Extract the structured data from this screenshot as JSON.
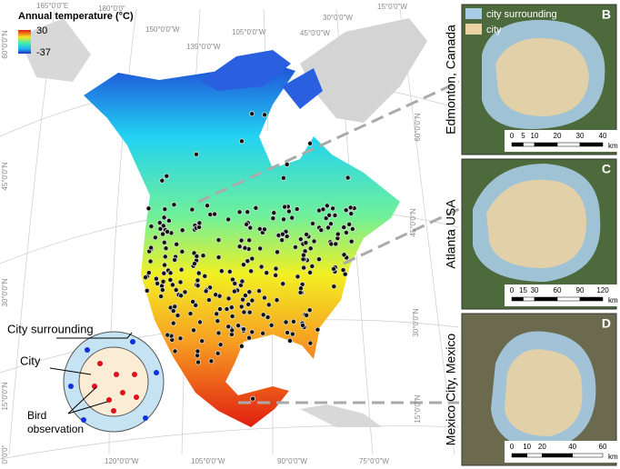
{
  "legend": {
    "title": "Annual temperature (°C)",
    "max": 30,
    "min": -37
  },
  "graticule": {
    "top": [
      "165°0'0\"E",
      "180°0'0\"",
      "150°0'0\"W",
      "135°0'0\"W",
      "105°0'0\"W",
      "45°0'0\"W",
      "30°0'0\"W",
      "15°0'0\"W"
    ],
    "left": [
      "60°0'0\"N",
      "45°0'0\"N",
      "30°0'0\"N",
      "15°0'0\"N",
      "0°0'0\""
    ],
    "bottom": [
      "120°0'0\"W",
      "105°0'0\"W",
      "90°0'0\"W",
      "75°0'0\"W"
    ],
    "right": [
      "60°0'0\"N",
      "45°0'0\"N",
      "30°0'0\"N",
      "15°0'0\"N"
    ]
  },
  "inset": {
    "surrounding": "City surrounding",
    "city": "City",
    "bird": "Bird observation"
  },
  "panel_legend": {
    "surrounding": "city surrounding",
    "city": "city"
  },
  "panels": [
    {
      "letter": "B",
      "name": "Edmonton, Canada",
      "scale": [
        0,
        5,
        10,
        20,
        30,
        40
      ],
      "unit": "km"
    },
    {
      "letter": "C",
      "name": "Atlanta USA",
      "scale": [
        0,
        15,
        30,
        60,
        90,
        120
      ],
      "unit": "km"
    },
    {
      "letter": "D",
      "name": "Mexico City, Mexico",
      "scale": [
        0,
        10,
        20,
        40,
        60
      ],
      "unit": "km"
    }
  ]
}
